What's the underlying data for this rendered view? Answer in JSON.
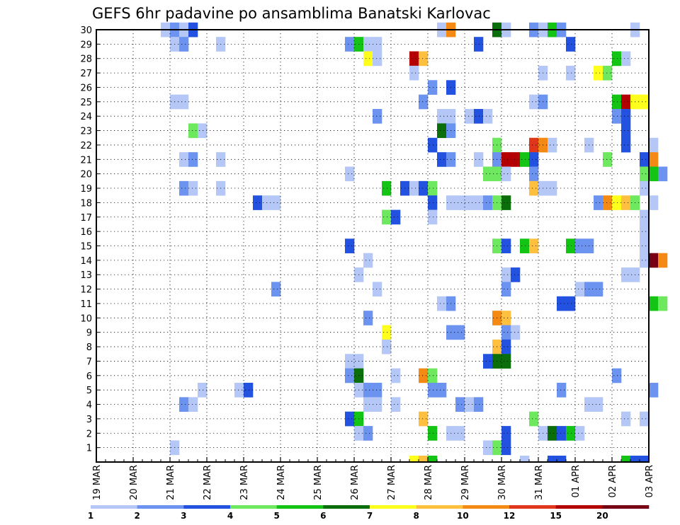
{
  "chart_data": {
    "type": "heatmap",
    "title": "GEFS 6hr padavine po ansamblima Banatski Karlovac",
    "y_ticks": [
      "1",
      "2",
      "3",
      "4",
      "5",
      "6",
      "7",
      "8",
      "9",
      "10",
      "11",
      "12",
      "13",
      "14",
      "15",
      "16",
      "17",
      "18",
      "19",
      "20",
      "21",
      "22",
      "23",
      "24",
      "25",
      "26",
      "27",
      "28",
      "29",
      "30"
    ],
    "x_ticks": [
      "19 MAR",
      "20 MAR",
      "21 MAR",
      "22 MAR",
      "23 MAR",
      "24 MAR",
      "25 MAR",
      "26 MAR",
      "27 MAR",
      "28 MAR",
      "29 MAR",
      "30 MAR",
      "31 MAR",
      "01 APR",
      "02 APR",
      "03 APR"
    ],
    "x_range": [
      "19 MAR",
      "03 APR"
    ],
    "y_range": [
      0,
      30
    ],
    "grid": true,
    "legend": {
      "placement": "bottom",
      "labels": [
        "1",
        "2",
        "3",
        "4",
        "5",
        "6",
        "7",
        "8",
        "10",
        "12",
        "15",
        "20"
      ],
      "colors": [
        "#b4c7f7",
        "#6b93ef",
        "#2352e0",
        "#6ee85e",
        "#14c414",
        "#0a6e0a",
        "#ffff1e",
        "#ffc040",
        "#f48a14",
        "#e0361c",
        "#b40000",
        "#780014"
      ]
    },
    "cells": [
      [
        30,
        "20 MAR 18Z",
        1
      ],
      [
        30,
        "21 MAR 00Z",
        2
      ],
      [
        30,
        "21 MAR 06Z",
        1
      ],
      [
        30,
        "21 MAR 12Z",
        3
      ],
      [
        30,
        "28 MAR 06Z",
        1
      ],
      [
        30,
        "28 MAR 12Z",
        9
      ],
      [
        30,
        "29 MAR 18Z",
        6
      ],
      [
        30,
        "30 MAR 00Z",
        1
      ],
      [
        30,
        "30 MAR 18Z",
        2
      ],
      [
        30,
        "31 MAR 00Z",
        1
      ],
      [
        30,
        "31 MAR 06Z",
        5
      ],
      [
        30,
        "31 MAR 12Z",
        2
      ],
      [
        30,
        "02 APR 12Z",
        1
      ],
      [
        29,
        "21 MAR 00Z",
        1
      ],
      [
        29,
        "21 MAR 06Z",
        2
      ],
      [
        29,
        "22 MAR 06Z",
        1
      ],
      [
        29,
        "25 MAR 18Z",
        2
      ],
      [
        29,
        "26 MAR 00Z",
        5
      ],
      [
        29,
        "26 MAR 06Z",
        1
      ],
      [
        29,
        "26 MAR 12Z",
        1
      ],
      [
        29,
        "29 MAR 06Z",
        3
      ],
      [
        29,
        "31 MAR 18Z",
        3
      ],
      [
        28,
        "26 MAR 06Z",
        7
      ],
      [
        28,
        "26 MAR 12Z",
        1
      ],
      [
        28,
        "27 MAR 12Z",
        11
      ],
      [
        28,
        "27 MAR 18Z",
        8
      ],
      [
        28,
        "02 APR 00Z",
        5
      ],
      [
        28,
        "02 APR 06Z",
        1
      ],
      [
        27,
        "27 MAR 12Z",
        1
      ],
      [
        27,
        "31 MAR 00Z",
        1
      ],
      [
        27,
        "31 MAR 18Z",
        1
      ],
      [
        27,
        "01 APR 12Z",
        7
      ],
      [
        27,
        "01 APR 18Z",
        4
      ],
      [
        26,
        "28 MAR 00Z",
        2
      ],
      [
        26,
        "28 MAR 12Z",
        3
      ],
      [
        25,
        "21 MAR 00Z",
        1
      ],
      [
        25,
        "21 MAR 06Z",
        1
      ],
      [
        25,
        "27 MAR 18Z",
        2
      ],
      [
        25,
        "30 MAR 18Z",
        1
      ],
      [
        25,
        "31 MAR 00Z",
        2
      ],
      [
        25,
        "02 APR 00Z",
        5
      ],
      [
        25,
        "02 APR 06Z",
        11
      ],
      [
        25,
        "02 APR 12Z",
        7
      ],
      [
        25,
        "02 APR 18Z",
        7
      ],
      [
        24,
        "26 MAR 12Z",
        2
      ],
      [
        24,
        "28 MAR 06Z",
        1
      ],
      [
        24,
        "28 MAR 12Z",
        1
      ],
      [
        24,
        "29 MAR 00Z",
        1
      ],
      [
        24,
        "29 MAR 06Z",
        3
      ],
      [
        24,
        "29 MAR 12Z",
        1
      ],
      [
        24,
        "02 APR 00Z",
        2
      ],
      [
        24,
        "02 APR 06Z",
        3
      ],
      [
        23,
        "21 MAR 12Z",
        4
      ],
      [
        23,
        "21 MAR 18Z",
        1
      ],
      [
        23,
        "28 MAR 06Z",
        6
      ],
      [
        23,
        "28 MAR 12Z",
        2
      ],
      [
        23,
        "02 APR 06Z",
        3
      ],
      [
        22,
        "28 MAR 00Z",
        3
      ],
      [
        22,
        "29 MAR 18Z",
        4
      ],
      [
        22,
        "30 MAR 18Z",
        10
      ],
      [
        22,
        "31 MAR 00Z",
        9
      ],
      [
        22,
        "31 MAR 06Z",
        1
      ],
      [
        22,
        "01 APR 06Z",
        1
      ],
      [
        22,
        "02 APR 06Z",
        3
      ],
      [
        22,
        "03 APR 00Z",
        1
      ],
      [
        21,
        "21 MAR 06Z",
        1
      ],
      [
        21,
        "21 MAR 12Z",
        2
      ],
      [
        21,
        "22 MAR 06Z",
        1
      ],
      [
        21,
        "28 MAR 06Z",
        3
      ],
      [
        21,
        "28 MAR 12Z",
        2
      ],
      [
        21,
        "29 MAR 06Z",
        1
      ],
      [
        21,
        "29 MAR 18Z",
        2
      ],
      [
        21,
        "30 MAR 00Z",
        11
      ],
      [
        21,
        "30 MAR 06Z",
        11
      ],
      [
        21,
        "30 MAR 12Z",
        5
      ],
      [
        21,
        "30 MAR 18Z",
        3
      ],
      [
        21,
        "01 APR 18Z",
        4
      ],
      [
        21,
        "02 APR 18Z",
        3
      ],
      [
        21,
        "03 APR 00Z",
        9
      ],
      [
        20,
        "25 MAR 18Z",
        1
      ],
      [
        20,
        "29 MAR 12Z",
        4
      ],
      [
        20,
        "29 MAR 18Z",
        4
      ],
      [
        20,
        "30 MAR 00Z",
        1
      ],
      [
        20,
        "30 MAR 18Z",
        2
      ],
      [
        20,
        "02 APR 18Z",
        4
      ],
      [
        20,
        "03 APR 00Z",
        5
      ],
      [
        20,
        "03 APR 06Z",
        2
      ],
      [
        19,
        "21 MAR 06Z",
        2
      ],
      [
        19,
        "21 MAR 12Z",
        1
      ],
      [
        19,
        "22 MAR 06Z",
        1
      ],
      [
        19,
        "26 MAR 18Z",
        5
      ],
      [
        19,
        "27 MAR 06Z",
        3
      ],
      [
        19,
        "27 MAR 12Z",
        1
      ],
      [
        19,
        "27 MAR 18Z",
        3
      ],
      [
        19,
        "28 MAR 00Z",
        4
      ],
      [
        19,
        "30 MAR 18Z",
        8
      ],
      [
        19,
        "31 MAR 00Z",
        1
      ],
      [
        19,
        "31 MAR 06Z",
        1
      ],
      [
        19,
        "02 APR 18Z",
        1
      ],
      [
        18,
        "23 MAR 06Z",
        3
      ],
      [
        18,
        "23 MAR 12Z",
        1
      ],
      [
        18,
        "23 MAR 18Z",
        1
      ],
      [
        18,
        "28 MAR 00Z",
        3
      ],
      [
        18,
        "28 MAR 12Z",
        1
      ],
      [
        18,
        "28 MAR 18Z",
        1
      ],
      [
        18,
        "29 MAR 00Z",
        1
      ],
      [
        18,
        "29 MAR 06Z",
        1
      ],
      [
        18,
        "29 MAR 12Z",
        2
      ],
      [
        18,
        "29 MAR 18Z",
        4
      ],
      [
        18,
        "30 MAR 00Z",
        6
      ],
      [
        18,
        "01 APR 12Z",
        2
      ],
      [
        18,
        "01 APR 18Z",
        9
      ],
      [
        18,
        "02 APR 00Z",
        7
      ],
      [
        18,
        "02 APR 06Z",
        8
      ],
      [
        18,
        "02 APR 12Z",
        4
      ],
      [
        18,
        "03 APR 00Z",
        1
      ],
      [
        17,
        "26 MAR 18Z",
        4
      ],
      [
        17,
        "27 MAR 00Z",
        3
      ],
      [
        17,
        "28 MAR 00Z",
        1
      ],
      [
        17,
        "02 APR 18Z",
        1
      ],
      [
        16,
        "02 APR 18Z",
        1
      ],
      [
        15,
        "25 MAR 18Z",
        3
      ],
      [
        15,
        "29 MAR 18Z",
        4
      ],
      [
        15,
        "30 MAR 00Z",
        3
      ],
      [
        15,
        "30 MAR 12Z",
        5
      ],
      [
        15,
        "30 MAR 18Z",
        8
      ],
      [
        15,
        "31 MAR 18Z",
        5
      ],
      [
        15,
        "01 APR 00Z",
        2
      ],
      [
        15,
        "01 APR 06Z",
        2
      ],
      [
        15,
        "02 APR 18Z",
        1
      ],
      [
        14,
        "26 MAR 06Z",
        1
      ],
      [
        14,
        "02 APR 18Z",
        1
      ],
      [
        14,
        "03 APR 00Z",
        12
      ],
      [
        14,
        "03 APR 06Z",
        9
      ],
      [
        13,
        "26 MAR 00Z",
        1
      ],
      [
        13,
        "30 MAR 00Z",
        1
      ],
      [
        13,
        "30 MAR 06Z",
        3
      ],
      [
        13,
        "02 APR 06Z",
        1
      ],
      [
        13,
        "02 APR 12Z",
        1
      ],
      [
        12,
        "23 MAR 18Z",
        2
      ],
      [
        12,
        "26 MAR 12Z",
        1
      ],
      [
        12,
        "30 MAR 00Z",
        2
      ],
      [
        12,
        "01 APR 00Z",
        1
      ],
      [
        12,
        "01 APR 06Z",
        2
      ],
      [
        12,
        "01 APR 12Z",
        2
      ],
      [
        11,
        "28 MAR 06Z",
        1
      ],
      [
        11,
        "28 MAR 12Z",
        2
      ],
      [
        11,
        "31 MAR 12Z",
        3
      ],
      [
        11,
        "31 MAR 18Z",
        3
      ],
      [
        11,
        "03 APR 00Z",
        5
      ],
      [
        11,
        "03 APR 06Z",
        4
      ],
      [
        10,
        "26 MAR 06Z",
        2
      ],
      [
        10,
        "29 MAR 18Z",
        9
      ],
      [
        10,
        "30 MAR 00Z",
        8
      ],
      [
        9,
        "26 MAR 18Z",
        7
      ],
      [
        9,
        "28 MAR 12Z",
        2
      ],
      [
        9,
        "28 MAR 18Z",
        2
      ],
      [
        9,
        "30 MAR 00Z",
        2
      ],
      [
        9,
        "30 MAR 06Z",
        1
      ],
      [
        8,
        "26 MAR 18Z",
        1
      ],
      [
        8,
        "29 MAR 18Z",
        8
      ],
      [
        8,
        "30 MAR 00Z",
        3
      ],
      [
        7,
        "25 MAR 18Z",
        1
      ],
      [
        7,
        "26 MAR 00Z",
        1
      ],
      [
        7,
        "29 MAR 12Z",
        3
      ],
      [
        7,
        "29 MAR 18Z",
        6
      ],
      [
        7,
        "30 MAR 00Z",
        6
      ],
      [
        6,
        "25 MAR 18Z",
        2
      ],
      [
        6,
        "26 MAR 00Z",
        6
      ],
      [
        6,
        "27 MAR 00Z",
        1
      ],
      [
        6,
        "27 MAR 18Z",
        9
      ],
      [
        6,
        "28 MAR 00Z",
        4
      ],
      [
        6,
        "02 APR 00Z",
        2
      ],
      [
        5,
        "21 MAR 18Z",
        1
      ],
      [
        5,
        "22 MAR 18Z",
        1
      ],
      [
        5,
        "23 MAR 00Z",
        3
      ],
      [
        5,
        "26 MAR 00Z",
        1
      ],
      [
        5,
        "26 MAR 06Z",
        2
      ],
      [
        5,
        "26 MAR 12Z",
        2
      ],
      [
        5,
        "28 MAR 00Z",
        2
      ],
      [
        5,
        "28 MAR 06Z",
        2
      ],
      [
        5,
        "31 MAR 12Z",
        2
      ],
      [
        5,
        "03 APR 00Z",
        2
      ],
      [
        4,
        "21 MAR 06Z",
        2
      ],
      [
        4,
        "21 MAR 12Z",
        1
      ],
      [
        4,
        "26 MAR 06Z",
        1
      ],
      [
        4,
        "26 MAR 12Z",
        1
      ],
      [
        4,
        "27 MAR 00Z",
        1
      ],
      [
        4,
        "28 MAR 18Z",
        2
      ],
      [
        4,
        "29 MAR 00Z",
        1
      ],
      [
        4,
        "29 MAR 06Z",
        2
      ],
      [
        4,
        "01 APR 06Z",
        1
      ],
      [
        4,
        "01 APR 12Z",
        1
      ],
      [
        3,
        "25 MAR 18Z",
        3
      ],
      [
        3,
        "26 MAR 00Z",
        5
      ],
      [
        3,
        "27 MAR 18Z",
        8
      ],
      [
        3,
        "30 MAR 18Z",
        4
      ],
      [
        3,
        "02 APR 06Z",
        1
      ],
      [
        3,
        "02 APR 18Z",
        1
      ],
      [
        2,
        "26 MAR 00Z",
        1
      ],
      [
        2,
        "26 MAR 06Z",
        2
      ],
      [
        2,
        "28 MAR 00Z",
        5
      ],
      [
        2,
        "28 MAR 12Z",
        1
      ],
      [
        2,
        "28 MAR 18Z",
        1
      ],
      [
        2,
        "30 MAR 00Z",
        3
      ],
      [
        2,
        "31 MAR 00Z",
        1
      ],
      [
        2,
        "31 MAR 06Z",
        6
      ],
      [
        2,
        "31 MAR 12Z",
        3
      ],
      [
        2,
        "31 MAR 18Z",
        5
      ],
      [
        2,
        "01 APR 00Z",
        1
      ],
      [
        1,
        "21 MAR 00Z",
        1
      ],
      [
        1,
        "29 MAR 12Z",
        1
      ],
      [
        1,
        "29 MAR 18Z",
        4
      ],
      [
        1,
        "30 MAR 00Z",
        3
      ],
      [
        0,
        "27 MAR 12Z",
        7
      ],
      [
        0,
        "27 MAR 18Z",
        8
      ],
      [
        0,
        "28 MAR 00Z",
        5
      ],
      [
        0,
        "30 MAR 12Z",
        1
      ],
      [
        0,
        "31 MAR 06Z",
        3
      ],
      [
        0,
        "31 MAR 12Z",
        3
      ],
      [
        0,
        "02 APR 06Z",
        5
      ],
      [
        0,
        "02 APR 12Z",
        3
      ],
      [
        0,
        "02 APR 18Z",
        3
      ]
    ]
  }
}
